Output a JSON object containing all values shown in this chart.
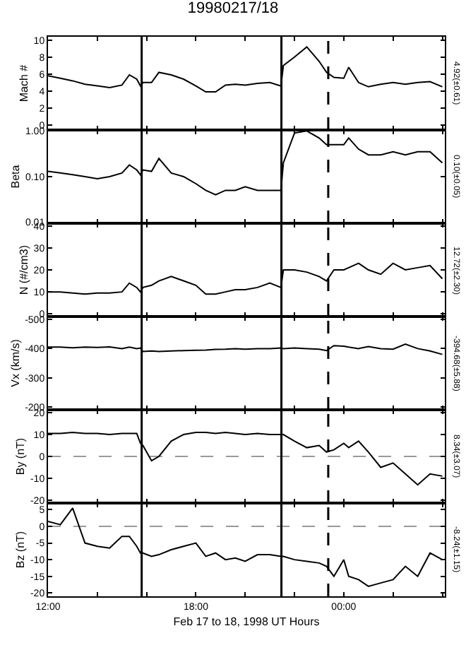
{
  "chart_data": [
    {
      "type": "line",
      "title": "19980217/18",
      "ylabel": "Mach #",
      "annotations": [
        "4.92(±0.61)"
      ],
      "tick_labels": "y",
      "x": [
        12,
        12.5,
        13,
        13.5,
        14,
        14.5,
        15,
        15.3,
        15.6,
        15.75,
        15.85,
        16.2,
        16.5,
        17,
        17.5,
        18,
        18.4,
        18.8,
        19.2,
        19.6,
        20,
        20.5,
        21,
        21.45,
        21.55,
        22,
        22.5,
        23,
        23.3,
        23.6,
        24,
        24.2,
        24.6,
        25,
        25.5,
        26,
        26.5,
        27,
        27.5,
        28
      ],
      "xlim": [
        12,
        28.1
      ],
      "xticks": [
        {
          "value": 12,
          "label": null
        },
        {
          "value": 14,
          "label": null
        },
        {
          "value": 16,
          "label": null
        },
        {
          "value": 18,
          "label": null
        },
        {
          "value": 20,
          "label": null
        },
        {
          "value": 22,
          "label": null
        },
        {
          "value": 24,
          "label": null
        },
        {
          "value": 26,
          "label": null
        },
        {
          "value": 28,
          "label": null
        }
      ],
      "ylim": [
        -0.6,
        10.4
      ],
      "yticks": [
        0,
        2,
        4,
        6,
        8,
        10
      ],
      "series": [
        {
          "color": "#000000",
          "values": [
            5.8,
            5.5,
            5.2,
            4.8,
            4.6,
            4.4,
            4.7,
            5.9,
            5.4,
            4.6,
            5.0,
            5.0,
            6.2,
            5.9,
            5.4,
            4.6,
            3.9,
            3.9,
            4.7,
            4.8,
            4.7,
            4.9,
            5.0,
            4.6,
            7.0,
            8.0,
            9.2,
            7.5,
            6.2,
            5.6,
            5.5,
            6.8,
            5.0,
            4.5,
            4.8,
            5.0,
            4.8,
            5.0,
            5.1,
            4.5
          ]
        }
      ],
      "ref_lines": [
        {
          "axis": "x",
          "value": 15.8,
          "color": "#000000",
          "line_style": "solid"
        },
        {
          "axis": "x",
          "value": 21.47,
          "color": "#000000",
          "line_style": "solid"
        },
        {
          "axis": "x",
          "value": 23.37,
          "color": "#000000",
          "line_style": "dashed"
        }
      ]
    },
    {
      "type": "line",
      "ylabel": "Beta",
      "annotations": [
        "0.10(±0.05)"
      ],
      "tick_labels": "y",
      "log": true,
      "x": [
        12,
        12.5,
        13,
        13.5,
        14,
        14.5,
        15,
        15.3,
        15.6,
        15.75,
        15.85,
        16.2,
        16.5,
        17,
        17.5,
        18,
        18.4,
        18.8,
        19.2,
        19.6,
        20,
        20.5,
        21,
        21.45,
        21.55,
        22,
        22.5,
        23,
        23.3,
        23.6,
        24,
        24.2,
        24.6,
        25,
        25.5,
        26,
        26.5,
        27,
        27.5,
        28
      ],
      "xlim": [
        12,
        28.1
      ],
      "xticks": [
        {
          "value": 12,
          "label": null
        },
        {
          "value": 14,
          "label": null
        },
        {
          "value": 16,
          "label": null
        },
        {
          "value": 18,
          "label": null
        },
        {
          "value": 20,
          "label": null
        },
        {
          "value": 22,
          "label": null
        },
        {
          "value": 24,
          "label": null
        },
        {
          "value": 26,
          "label": null
        },
        {
          "value": 28,
          "label": null
        }
      ],
      "ylim": [
        0.0095,
        1.05
      ],
      "yticks": [
        {
          "value": 0.01,
          "label": "0.01"
        },
        {
          "value": 0.1,
          "label": "0.10"
        },
        {
          "value": 1,
          "label": "1.00"
        }
      ],
      "series": [
        {
          "color": "#000000",
          "values": [
            0.13,
            0.12,
            0.11,
            0.1,
            0.09,
            0.1,
            0.12,
            0.18,
            0.14,
            0.11,
            0.14,
            0.13,
            0.25,
            0.12,
            0.1,
            0.07,
            0.05,
            0.04,
            0.05,
            0.05,
            0.06,
            0.05,
            0.05,
            0.05,
            0.2,
            0.9,
            1.0,
            0.7,
            0.5,
            0.5,
            0.5,
            0.7,
            0.4,
            0.3,
            0.3,
            0.35,
            0.3,
            0.35,
            0.35,
            0.2
          ]
        }
      ],
      "ref_lines": [
        {
          "axis": "x",
          "value": 15.8,
          "color": "#000000",
          "line_style": "solid"
        },
        {
          "axis": "x",
          "value": 21.47,
          "color": "#000000",
          "line_style": "solid"
        },
        {
          "axis": "x",
          "value": 23.37,
          "color": "#000000",
          "line_style": "dashed"
        }
      ]
    },
    {
      "type": "line",
      "ylabel": "N (#/cm3)",
      "annotations": [
        "12.72(±2.30)"
      ],
      "tick_labels": "y",
      "x": [
        12,
        12.5,
        13,
        13.5,
        14,
        14.5,
        15,
        15.3,
        15.6,
        15.75,
        15.85,
        16.2,
        16.5,
        17,
        17.5,
        18,
        18.4,
        18.8,
        19.2,
        19.6,
        20,
        20.5,
        21,
        21.45,
        21.55,
        22,
        22.5,
        23,
        23.3,
        23.6,
        24,
        24.2,
        24.6,
        25,
        25.5,
        26,
        26.5,
        27,
        27.5,
        28
      ],
      "xlim": [
        12,
        28.1
      ],
      "xticks": [
        {
          "value": 12,
          "label": null
        },
        {
          "value": 14,
          "label": null
        },
        {
          "value": 16,
          "label": null
        },
        {
          "value": 18,
          "label": null
        },
        {
          "value": 20,
          "label": null
        },
        {
          "value": 22,
          "label": null
        },
        {
          "value": 24,
          "label": null
        },
        {
          "value": 26,
          "label": null
        },
        {
          "value": 28,
          "label": null
        }
      ],
      "ylim": [
        -1.2,
        41.2
      ],
      "yticks": [
        0,
        10,
        20,
        30,
        40
      ],
      "series": [
        {
          "color": "#000000",
          "values": [
            10,
            10,
            9.5,
            9,
            9.5,
            9.5,
            10,
            14,
            12,
            10,
            12,
            13,
            15,
            17,
            15,
            13,
            9,
            9,
            10,
            11,
            11,
            12,
            14,
            12,
            20,
            20,
            19,
            17,
            15,
            20,
            20,
            21,
            23,
            20,
            18,
            23,
            20,
            21,
            22,
            16
          ]
        }
      ],
      "ref_lines": [
        {
          "axis": "x",
          "value": 15.8,
          "color": "#000000",
          "line_style": "solid"
        },
        {
          "axis": "x",
          "value": 21.47,
          "color": "#000000",
          "line_style": "solid"
        },
        {
          "axis": "x",
          "value": 23.37,
          "color": "#000000",
          "line_style": "dashed"
        }
      ]
    },
    {
      "type": "line",
      "ylabel": "Vx (km/s)",
      "annotations": [
        "-394.68(±5.88)"
      ],
      "tick_labels": "y",
      "x": [
        12,
        12.5,
        13,
        13.5,
        14,
        14.5,
        15,
        15.3,
        15.6,
        15.75,
        15.85,
        16.2,
        16.5,
        17,
        17.5,
        18,
        18.4,
        18.8,
        19.2,
        19.6,
        20,
        20.5,
        21,
        21.45,
        21.55,
        22,
        22.5,
        23,
        23.3,
        23.6,
        24,
        24.2,
        24.6,
        25,
        25.5,
        26,
        26.5,
        27,
        27.5,
        28
      ],
      "xlim": [
        12,
        28.1
      ],
      "xticks": [
        {
          "value": 12,
          "label": null
        },
        {
          "value": 14,
          "label": null
        },
        {
          "value": 16,
          "label": null
        },
        {
          "value": 18,
          "label": null
        },
        {
          "value": 20,
          "label": null
        },
        {
          "value": 22,
          "label": null
        },
        {
          "value": 24,
          "label": null
        },
        {
          "value": 26,
          "label": null
        },
        {
          "value": 28,
          "label": null
        }
      ],
      "ylim": [
        -190,
        -510
      ],
      "yticks": [
        -500,
        -400,
        -300,
        -200
      ],
      "series": [
        {
          "color": "#000000",
          "values": [
            -405,
            -405,
            -403,
            -405,
            -404,
            -406,
            -400,
            -405,
            -400,
            -402,
            -390,
            -392,
            -390,
            -392,
            -393,
            -394,
            -395,
            -397,
            -398,
            -400,
            -398,
            -400,
            -400,
            -402,
            -400,
            -402,
            -400,
            -398,
            -393,
            -410,
            -408,
            -405,
            -400,
            -407,
            -400,
            -398,
            -415,
            -400,
            -392,
            -380
          ]
        }
      ],
      "ref_lines": [
        {
          "axis": "x",
          "value": 15.8,
          "color": "#000000",
          "line_style": "solid"
        },
        {
          "axis": "x",
          "value": 21.47,
          "color": "#000000",
          "line_style": "solid"
        },
        {
          "axis": "x",
          "value": 23.37,
          "color": "#000000",
          "line_style": "dashed"
        }
      ]
    },
    {
      "type": "line",
      "ylabel": "By (nT)",
      "annotations": [
        "8.34(±3.07)"
      ],
      "tick_labels": "y",
      "x": [
        12,
        12.5,
        13,
        13.5,
        14,
        14.5,
        15,
        15.3,
        15.6,
        15.75,
        15.85,
        16.2,
        16.5,
        17,
        17.5,
        18,
        18.4,
        18.8,
        19.2,
        19.6,
        20,
        20.5,
        21,
        21.45,
        21.55,
        22,
        22.5,
        23,
        23.3,
        23.6,
        24,
        24.2,
        24.6,
        25,
        25.5,
        26,
        26.5,
        27,
        27.5,
        28
      ],
      "xlim": [
        12,
        28.1
      ],
      "xticks": [
        {
          "value": 12,
          "label": null
        },
        {
          "value": 14,
          "label": null
        },
        {
          "value": 16,
          "label": null
        },
        {
          "value": 18,
          "label": null
        },
        {
          "value": 20,
          "label": null
        },
        {
          "value": 22,
          "label": null
        },
        {
          "value": 24,
          "label": null
        },
        {
          "value": 26,
          "label": null
        },
        {
          "value": 28,
          "label": null
        }
      ],
      "ylim": [
        -21.3,
        21.3
      ],
      "yticks": [
        -20,
        -10,
        0,
        10,
        20
      ],
      "series": [
        {
          "color": "#000000",
          "values": [
            10.5,
            10.5,
            11,
            10.5,
            10.5,
            10,
            10.5,
            10.5,
            10.5,
            6,
            5,
            -2,
            0,
            7,
            10,
            11,
            11,
            10.5,
            11,
            10.5,
            10,
            10.5,
            10,
            10,
            10,
            7,
            4,
            5,
            2,
            3,
            6,
            4,
            7,
            2,
            -5,
            -3,
            -8,
            -13,
            -8,
            -9
          ]
        }
      ],
      "ref_lines": [
        {
          "axis": "x",
          "value": 15.8,
          "color": "#000000",
          "line_style": "solid"
        },
        {
          "axis": "x",
          "value": 21.47,
          "color": "#000000",
          "line_style": "solid"
        },
        {
          "axis": "x",
          "value": 23.37,
          "color": "#000000",
          "line_style": "dashed"
        },
        {
          "axis": "y",
          "value": 0,
          "color": "#999999",
          "line_style": "dashed"
        }
      ]
    },
    {
      "type": "line",
      "ylabel": "Bz (nT)",
      "xlabel": "Feb 17 to 18, 1998 UT Hours",
      "annotations": [
        "-8.24(±1.15)"
      ],
      "x": [
        12,
        12.5,
        13,
        13.5,
        14,
        14.5,
        15,
        15.3,
        15.6,
        15.75,
        15.85,
        16.2,
        16.5,
        17,
        17.5,
        18,
        18.4,
        18.8,
        19.2,
        19.6,
        20,
        20.5,
        21,
        21.45,
        21.55,
        22,
        22.5,
        23,
        23.3,
        23.6,
        24,
        24.2,
        24.6,
        25,
        25.5,
        26,
        26.5,
        27,
        27.5,
        28
      ],
      "xlim": [
        12,
        28.1
      ],
      "xticks": [
        {
          "value": 12,
          "label": "12:00"
        },
        {
          "value": 14,
          "label": null
        },
        {
          "value": 16,
          "label": null
        },
        {
          "value": 18,
          "label": "18:00"
        },
        {
          "value": 20,
          "label": null
        },
        {
          "value": 22,
          "label": null
        },
        {
          "value": 24,
          "label": "00:00"
        },
        {
          "value": 26,
          "label": null
        },
        {
          "value": 28,
          "label": null
        }
      ],
      "ylim": [
        -21,
        7
      ],
      "yticks": [
        -20,
        -15,
        -10,
        -5,
        0,
        5
      ],
      "series": [
        {
          "color": "#000000",
          "values": [
            1.5,
            0.5,
            5.5,
            -5,
            -6,
            -6.5,
            -3,
            -3,
            -6,
            -8,
            -8,
            -9,
            -8.5,
            -7,
            -6,
            -5,
            -9,
            -8,
            -10,
            -9.5,
            -10.5,
            -8.5,
            -8.5,
            -9,
            -9,
            -10,
            -10.5,
            -11,
            -12,
            -15,
            -10,
            -15,
            -16,
            -18,
            -17,
            -16,
            -12,
            -15,
            -8,
            -10
          ]
        }
      ],
      "ref_lines": [
        {
          "axis": "x",
          "value": 15.8,
          "color": "#000000",
          "line_style": "solid"
        },
        {
          "axis": "x",
          "value": 21.47,
          "color": "#000000",
          "line_style": "solid"
        },
        {
          "axis": "x",
          "value": 23.37,
          "color": "#000000",
          "line_style": "dashed"
        },
        {
          "axis": "y",
          "value": 0,
          "color": "#999999",
          "line_style": "dashed"
        }
      ]
    }
  ]
}
